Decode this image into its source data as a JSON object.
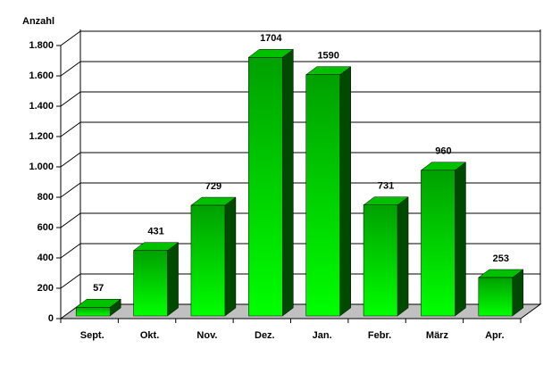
{
  "chart_data": {
    "type": "bar",
    "y_label": "Anzahl",
    "categories": [
      "Sept.",
      "Okt.",
      "Nov.",
      "Dez.",
      "Jan.",
      "Febr.",
      "März",
      "Apr."
    ],
    "values": [
      57,
      431,
      729,
      1704,
      1590,
      731,
      960,
      253
    ],
    "color": "#00e000",
    "ylim": [
      0,
      1800
    ],
    "yticks": [
      0,
      200,
      400,
      600,
      800,
      {
        "value": 1000,
        "label": "1.000"
      },
      {
        "value": 1200,
        "label": "1.200"
      },
      {
        "value": 1400,
        "label": "1.400"
      },
      {
        "value": 1600,
        "label": "1.600"
      },
      {
        "value": 1800,
        "label": "1.800"
      }
    ],
    "grid": true
  }
}
